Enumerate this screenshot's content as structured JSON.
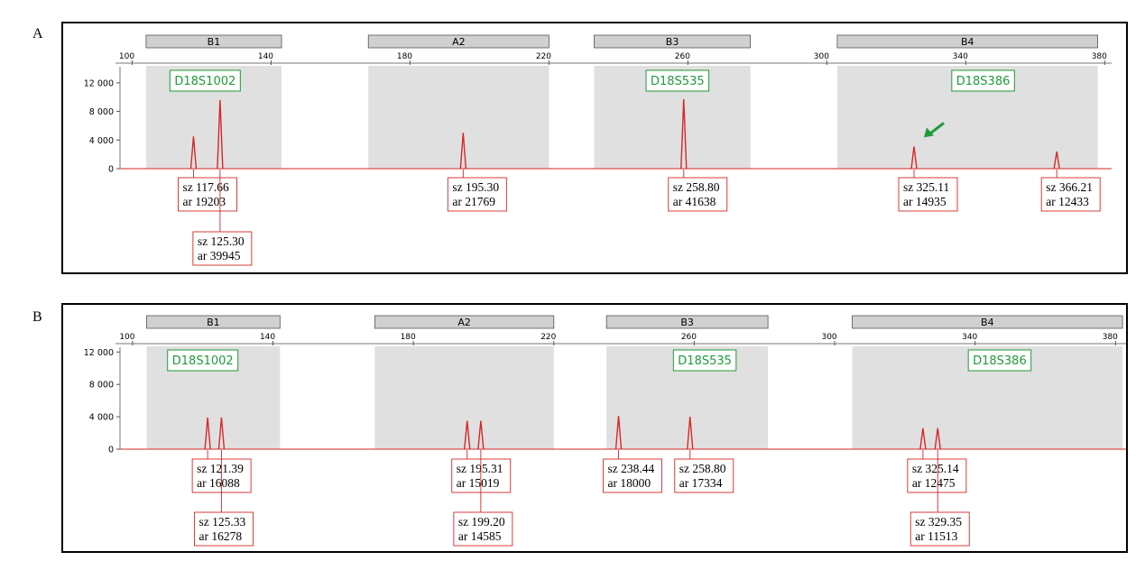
{
  "colors": {
    "trace": "#d62728",
    "marker_label": "#1f9a3a",
    "band_fill": "#e0e0e0",
    "bin_fill": "#d0d0d0",
    "annotation_border": "#d62728",
    "arrow": "#1f9a3a"
  },
  "chart_data": [
    {
      "type": "line",
      "panel_label": "A",
      "xlim": [
        90,
        382
      ],
      "ylim": [
        0,
        14500
      ],
      "x_ticks": [
        100,
        140,
        180,
        220,
        260,
        300,
        340,
        380
      ],
      "y_ticks": [
        {
          "value": 0,
          "label": "0"
        },
        {
          "value": 4000,
          "label": "4 000"
        },
        {
          "value": 8000,
          "label": "8 000"
        },
        {
          "value": 12000,
          "label": "12 000"
        }
      ],
      "bins": [
        {
          "label": "B1",
          "start": 104,
          "end": 143
        },
        {
          "label": "A2",
          "start": 168,
          "end": 220
        },
        {
          "label": "B3",
          "start": 233,
          "end": 278
        },
        {
          "label": "B4",
          "start": 303,
          "end": 378
        }
      ],
      "markers": [
        {
          "label": "D18S1002",
          "x": 121
        },
        {
          "label": "D18S535",
          "x": 257
        },
        {
          "label": "D18S386",
          "x": 345
        }
      ],
      "peaks": [
        {
          "x": 117.66,
          "y": 4500,
          "sz": "sz 117.66",
          "ar": "ar 19203",
          "row": 0
        },
        {
          "x": 125.3,
          "y": 9600,
          "sz": "sz 125.30",
          "ar": "ar 39945",
          "row": 1
        },
        {
          "x": 195.3,
          "y": 5000,
          "sz": "sz 195.30",
          "ar": "ar 21769",
          "row": 0
        },
        {
          "x": 258.8,
          "y": 9700,
          "sz": "sz 258.80",
          "ar": "ar 41638",
          "row": 0
        },
        {
          "x": 325.11,
          "y": 3100,
          "sz": "sz 325.11",
          "ar": "ar 14935",
          "row": 0
        },
        {
          "x": 366.21,
          "y": 2400,
          "sz": "sz 366.21",
          "ar": "ar 12433",
          "row": 0
        }
      ],
      "arrow_peak_index": 4
    },
    {
      "type": "line",
      "panel_label": "B",
      "xlim": [
        90,
        383
      ],
      "ylim": [
        0,
        12700
      ],
      "x_ticks": [
        100,
        140,
        180,
        220,
        260,
        300,
        340,
        380
      ],
      "y_ticks": [
        {
          "value": 0,
          "label": "0"
        },
        {
          "value": 4000,
          "label": "4 000"
        },
        {
          "value": 8000,
          "label": "8 000"
        },
        {
          "value": 12000,
          "label": "12 000"
        }
      ],
      "bins": [
        {
          "label": "B1",
          "start": 104,
          "end": 142
        },
        {
          "label": "A2",
          "start": 169,
          "end": 220
        },
        {
          "label": "B3",
          "start": 235,
          "end": 281
        },
        {
          "label": "B4",
          "start": 305,
          "end": 382
        }
      ],
      "markers": [
        {
          "label": "D18S1002",
          "x": 120
        },
        {
          "label": "D18S535",
          "x": 263
        },
        {
          "label": "D18S386",
          "x": 347
        }
      ],
      "peaks": [
        {
          "x": 121.39,
          "y": 3900,
          "sz": "sz 121.39",
          "ar": "ar 16088",
          "row": 0
        },
        {
          "x": 125.33,
          "y": 3900,
          "sz": "sz 125.33",
          "ar": "ar 16278",
          "row": 1
        },
        {
          "x": 195.31,
          "y": 3500,
          "sz": "sz 195.31",
          "ar": "ar 15019",
          "row": 0
        },
        {
          "x": 199.2,
          "y": 3500,
          "sz": "sz 199.20",
          "ar": "ar 14585",
          "row": 1
        },
        {
          "x": 238.44,
          "y": 4100,
          "sz": "sz 238.44",
          "ar": "ar 18000",
          "row": 0
        },
        {
          "x": 258.8,
          "y": 4000,
          "sz": "sz 258.80",
          "ar": "ar 17334",
          "row": 0
        },
        {
          "x": 325.14,
          "y": 2600,
          "sz": "sz 325.14",
          "ar": "ar 12475",
          "row": 0
        },
        {
          "x": 329.35,
          "y": 2600,
          "sz": "sz 329.35",
          "ar": "ar 11513",
          "row": 1
        }
      ],
      "arrow_peak_index": null
    }
  ]
}
